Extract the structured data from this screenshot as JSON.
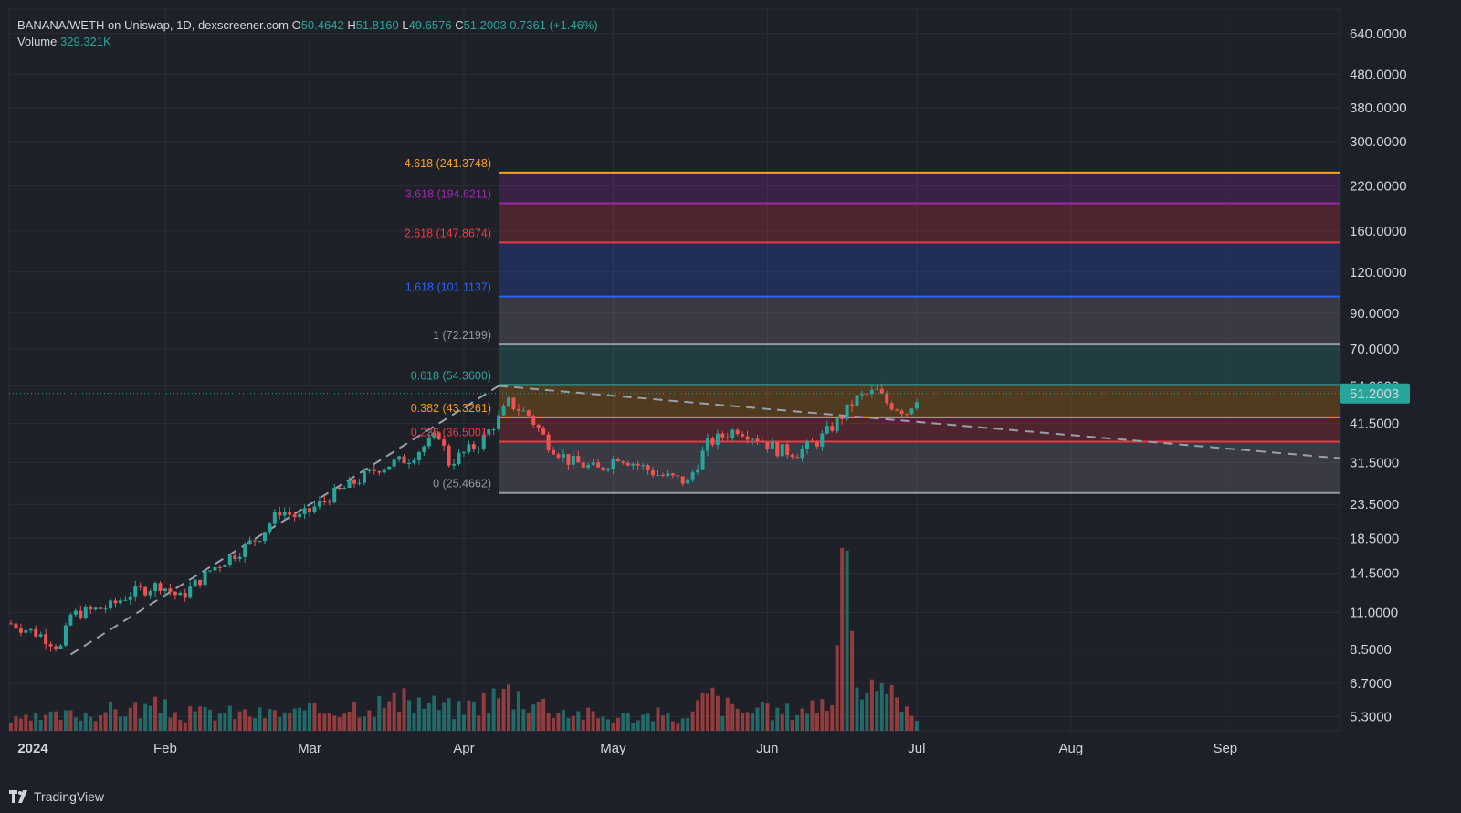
{
  "legend": {
    "symbol": "BANANA/WETH on Uniswap, 1D, dexscreener.com",
    "o_label": "O",
    "o": "50.4642",
    "h_label": "H",
    "h": "51.8160",
    "l_label": "L",
    "l": "49.6576",
    "c_label": "C",
    "c": "51.2003",
    "change": "0.7361 (+1.46%)",
    "volume_label": "Volume",
    "volume": "329.321K"
  },
  "brand": {
    "name": "TradingView"
  },
  "colors": {
    "bg": "#1e2029",
    "grid": "#2a2d38",
    "up": "#26a69a",
    "down": "#ef5350",
    "trend": "#9aa0aa"
  },
  "chart_data": {
    "type": "candlestick",
    "yscale": "log",
    "ylim": [
      4.8,
      760
    ],
    "price_ticks": [
      "640.0000",
      "480.0000",
      "380.0000",
      "300.0000",
      "220.0000",
      "160.0000",
      "120.0000",
      "90.0000",
      "70.0000",
      "54.0000",
      "41.5000",
      "31.5000",
      "23.5000",
      "18.5000",
      "14.5000",
      "11.0000",
      "8.5000",
      "6.7000",
      "5.3000"
    ],
    "x_ticks": [
      "2024",
      "Feb",
      "Mar",
      "Apr",
      "May",
      "Jun",
      "Jul",
      "Aug",
      "Sep"
    ],
    "last_price": "51.2003",
    "fib_levels": [
      {
        "label": "4.618 (241.3748)",
        "value": 241.3748,
        "color": "#f7a21b"
      },
      {
        "label": "3.618 (194.6211)",
        "value": 194.6211,
        "color": "#9c27b0"
      },
      {
        "label": "2.618 (147.8674)",
        "value": 147.8674,
        "color": "#f23645"
      },
      {
        "label": "1.618 (101.1137)",
        "value": 101.1137,
        "color": "#2962ff"
      },
      {
        "label": "1 (72.2199)",
        "value": 72.2199,
        "color": "#9598a1"
      },
      {
        "label": "0.618 (54.3600)",
        "value": 54.36,
        "color": "#26a69a"
      },
      {
        "label": "0.382 (43.3261)",
        "value": 43.3261,
        "color": "#ff9800"
      },
      {
        "label": "0.236 (36.5001)",
        "value": 36.5001,
        "color": "#f23645"
      },
      {
        "label": "0 (25.4662)",
        "value": 25.4662,
        "color": "#9598a1"
      }
    ],
    "candle_close_path": [
      [
        0,
        10.2
      ],
      [
        6,
        9.4
      ],
      [
        10,
        8.6
      ],
      [
        12,
        10.8
      ],
      [
        20,
        11.5
      ],
      [
        24,
        12.6
      ],
      [
        30,
        13.4
      ],
      [
        34,
        12.2
      ],
      [
        40,
        14.8
      ],
      [
        46,
        17.0
      ],
      [
        50,
        18.9
      ],
      [
        54,
        22.5
      ],
      [
        58,
        21.4
      ],
      [
        64,
        24.8
      ],
      [
        70,
        28.0
      ],
      [
        74,
        30.5
      ],
      [
        80,
        32.5
      ],
      [
        86,
        38.5
      ],
      [
        88,
        31.5
      ],
      [
        94,
        36.0
      ],
      [
        98,
        43.0
      ],
      [
        100,
        48.0
      ],
      [
        104,
        44.0
      ],
      [
        108,
        36.0
      ],
      [
        112,
        32.0
      ],
      [
        118,
        30.0
      ],
      [
        122,
        33.0
      ],
      [
        126,
        31.0
      ],
      [
        130,
        29.0
      ],
      [
        136,
        27.5
      ],
      [
        140,
        36.0
      ],
      [
        146,
        40.0
      ],
      [
        150,
        37.5
      ],
      [
        154,
        34.5
      ],
      [
        158,
        33.8
      ],
      [
        162,
        36.5
      ],
      [
        166,
        42.0
      ],
      [
        170,
        49.5
      ],
      [
        174,
        52.0
      ],
      [
        176,
        48.0
      ],
      [
        180,
        45.0
      ],
      [
        182,
        50.0
      ]
    ],
    "volume_profile": [
      [
        0,
        0.18
      ],
      [
        10,
        0.28
      ],
      [
        20,
        0.38
      ],
      [
        30,
        0.45
      ],
      [
        34,
        0.3
      ],
      [
        40,
        0.35
      ],
      [
        50,
        0.32
      ],
      [
        60,
        0.35
      ],
      [
        70,
        0.5
      ],
      [
        82,
        0.55
      ],
      [
        90,
        0.4
      ],
      [
        100,
        0.75
      ],
      [
        110,
        0.4
      ],
      [
        120,
        0.25
      ],
      [
        130,
        0.3
      ],
      [
        136,
        0.2
      ],
      [
        140,
        0.7
      ],
      [
        145,
        0.4
      ],
      [
        155,
        0.35
      ],
      [
        160,
        0.45
      ],
      [
        165,
        0.6
      ],
      [
        168,
        3.4
      ],
      [
        170,
        0.9
      ],
      [
        175,
        0.6
      ],
      [
        180,
        0.7
      ],
      [
        182,
        0.2
      ]
    ]
  }
}
